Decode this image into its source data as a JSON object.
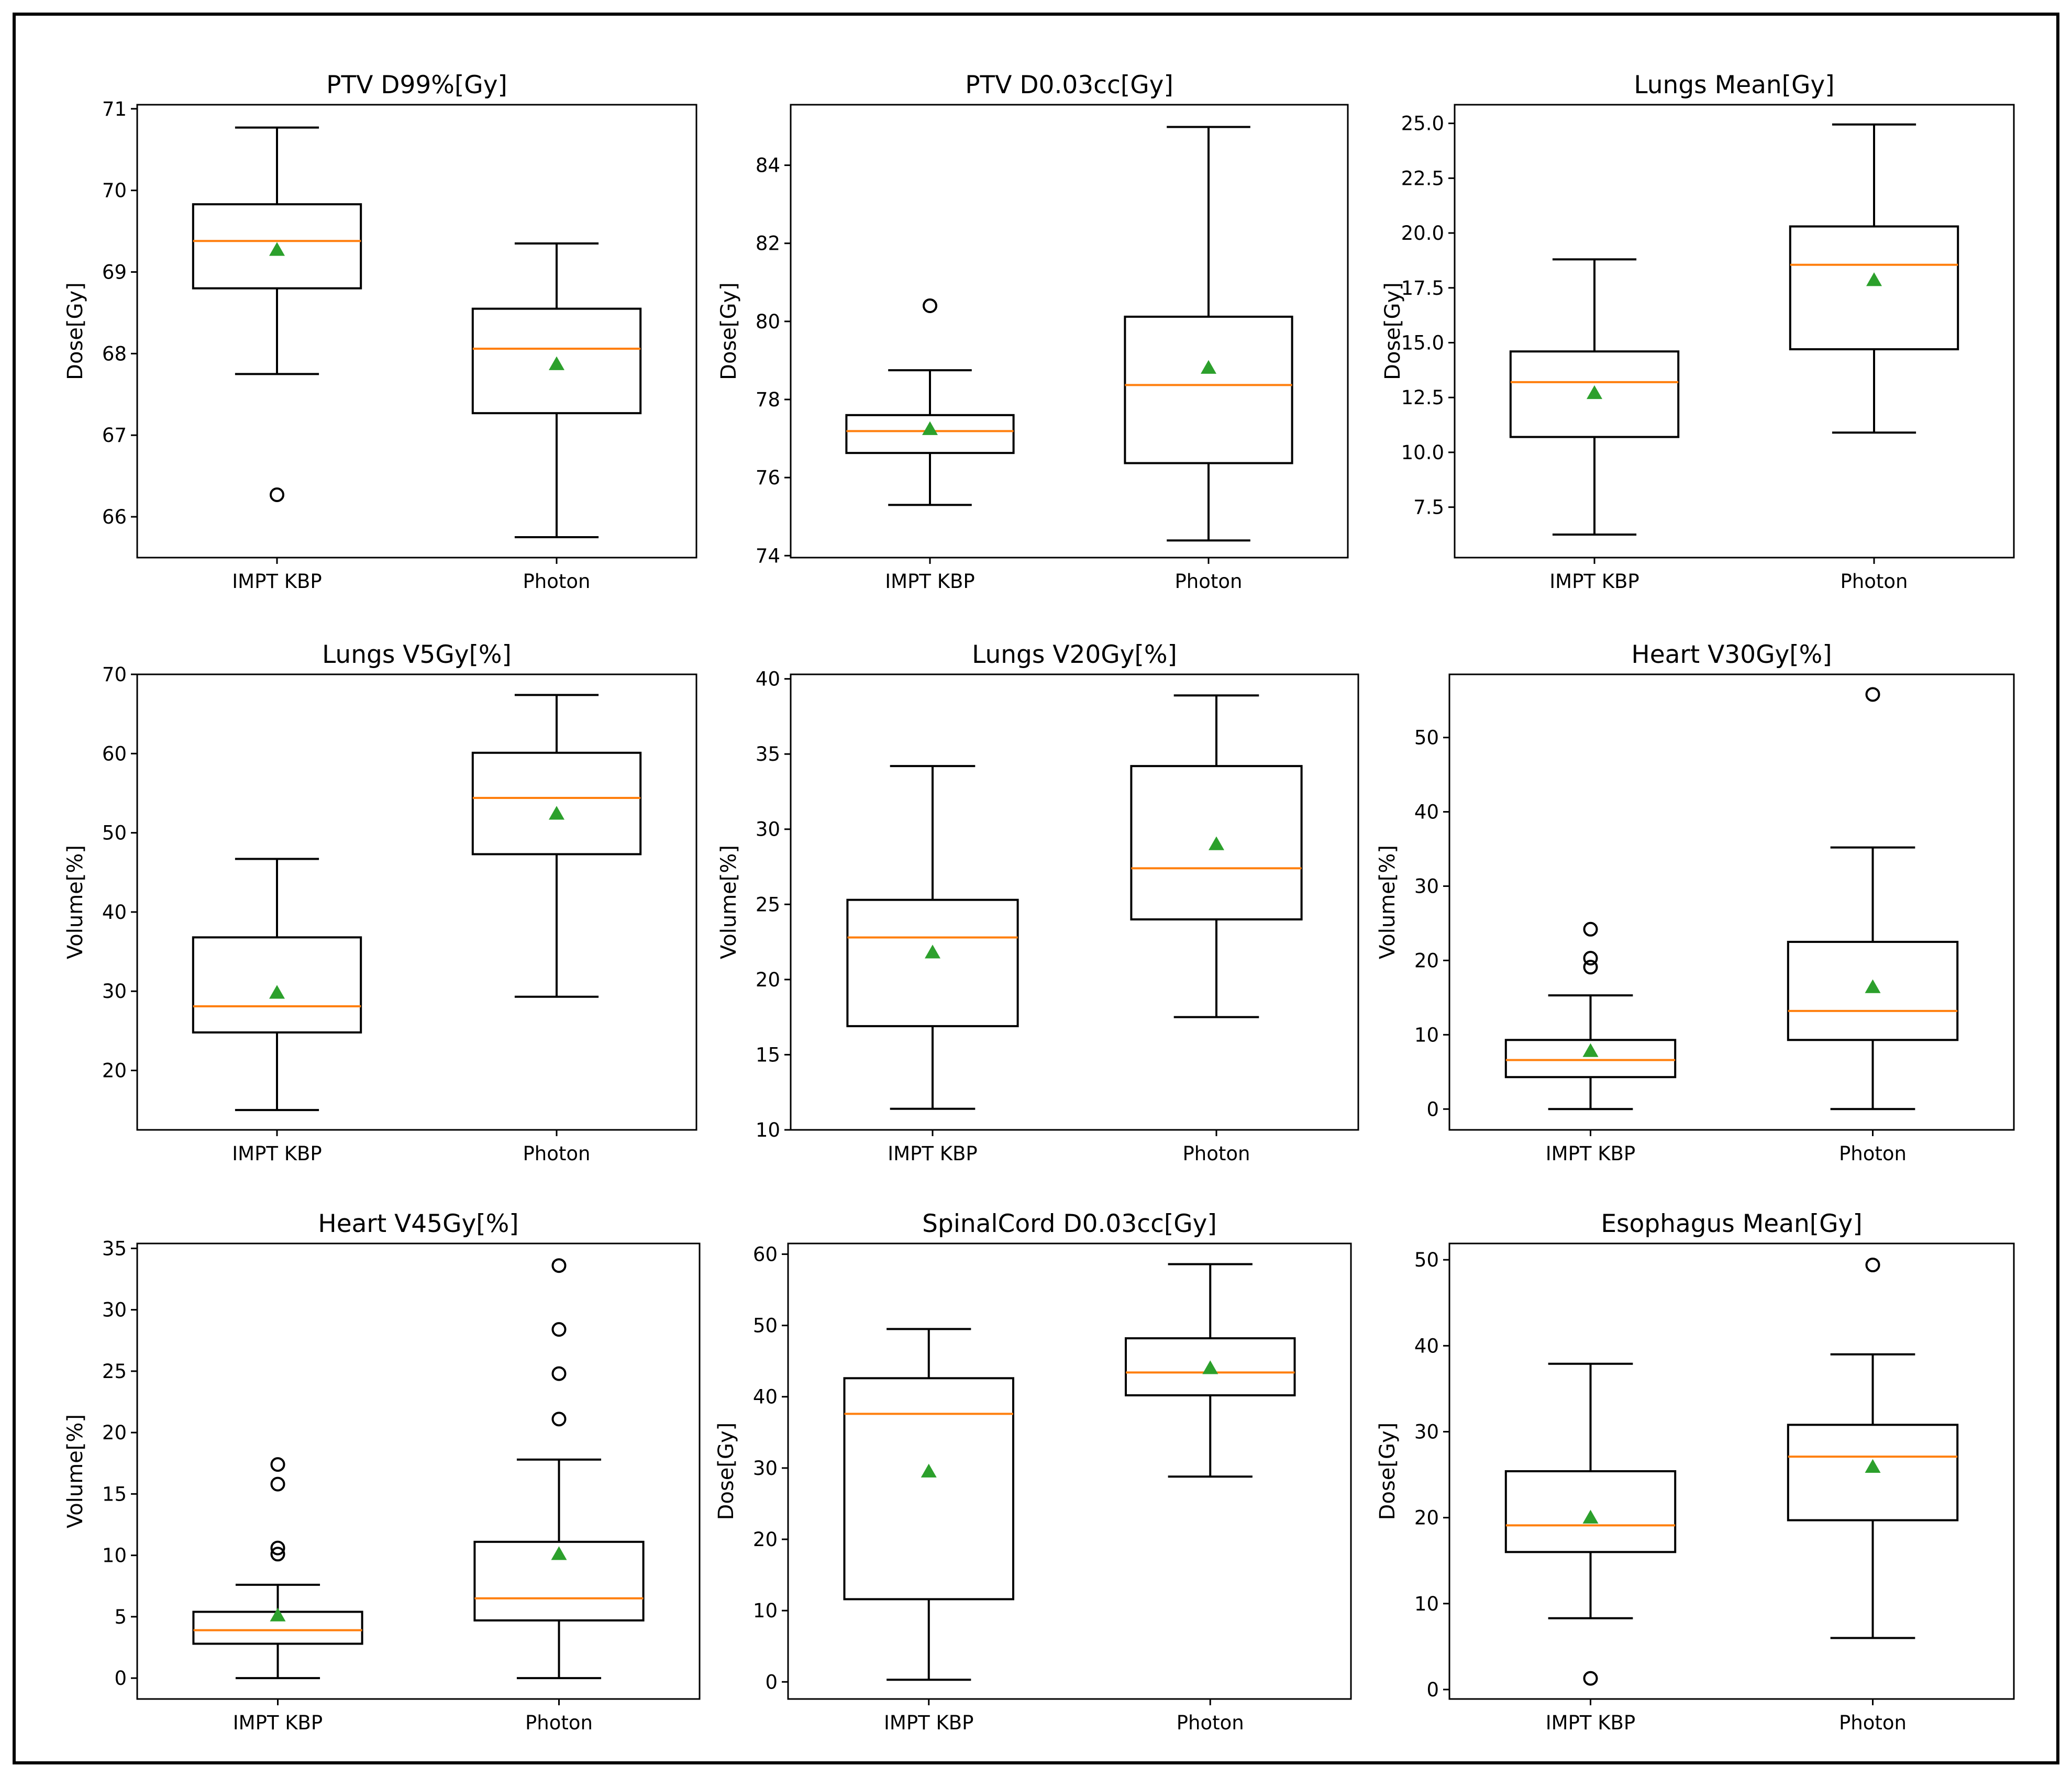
{
  "figure": {
    "colors": {
      "median": "#ff7f0e",
      "mean": "#2ca02c",
      "box": "#000000",
      "background": "#ffffff"
    }
  },
  "chart_data": [
    {
      "type": "boxplot",
      "title": "PTV D99%[Gy]",
      "ylabel": "Dose[Gy]",
      "categories": [
        "IMPT KBP",
        "Photon"
      ],
      "ylim": [
        65.5,
        71.05
      ],
      "yticks": [
        66,
        67,
        68,
        69,
        70,
        71
      ],
      "ytick_labels": [
        "66",
        "67",
        "68",
        "69",
        "70",
        "71"
      ],
      "series": [
        {
          "name": "IMPT KBP",
          "whislo": 67.75,
          "q1": 68.8,
          "med": 69.38,
          "q3": 69.83,
          "whishi": 70.77,
          "mean": 69.27,
          "fliers": [
            66.27
          ]
        },
        {
          "name": "Photon",
          "whislo": 65.75,
          "q1": 67.27,
          "med": 68.06,
          "q3": 68.55,
          "whishi": 69.35,
          "mean": 67.87,
          "fliers": []
        }
      ]
    },
    {
      "type": "boxplot",
      "title": "PTV D0.03cc[Gy]",
      "ylabel": "Dose[Gy]",
      "categories": [
        "IMPT KBP",
        "Photon"
      ],
      "ylim": [
        73.95,
        85.55
      ],
      "yticks": [
        74,
        76,
        78,
        80,
        82,
        84
      ],
      "ytick_labels": [
        "74",
        "76",
        "78",
        "80",
        "82",
        "84"
      ],
      "series": [
        {
          "name": "IMPT KBP",
          "whislo": 75.3,
          "q1": 76.63,
          "med": 77.19,
          "q3": 77.6,
          "whishi": 78.75,
          "mean": 77.24,
          "fliers": [
            80.4
          ]
        },
        {
          "name": "Photon",
          "whislo": 74.39,
          "q1": 76.37,
          "med": 78.37,
          "q3": 80.12,
          "whishi": 84.98,
          "mean": 78.81,
          "fliers": []
        }
      ]
    },
    {
      "type": "boxplot",
      "title": "Lungs Mean[Gy]",
      "ylabel": "Dose[Gy]",
      "categories": [
        "IMPT KBP",
        "Photon"
      ],
      "ylim": [
        5.2,
        25.85
      ],
      "yticks": [
        7.5,
        10.0,
        12.5,
        15.0,
        17.5,
        20.0,
        22.5,
        25.0
      ],
      "ytick_labels": [
        "7.5",
        "10.0",
        "12.5",
        "15.0",
        "17.5",
        "20.0",
        "22.5",
        "25.0"
      ],
      "series": [
        {
          "name": "IMPT KBP",
          "whislo": 6.25,
          "q1": 10.7,
          "med": 13.2,
          "q3": 14.6,
          "whishi": 18.8,
          "mean": 12.7,
          "fliers": []
        },
        {
          "name": "Photon",
          "whislo": 10.9,
          "q1": 14.7,
          "med": 18.55,
          "q3": 20.3,
          "whishi": 24.95,
          "mean": 17.85,
          "fliers": []
        }
      ]
    },
    {
      "type": "boxplot",
      "title": "Lungs V5Gy[%]",
      "ylabel": "Volume[%]",
      "categories": [
        "IMPT KBP",
        "Photon"
      ],
      "ylim": [
        12.5,
        70.0
      ],
      "yticks": [
        20,
        30,
        40,
        50,
        60,
        70
      ],
      "ytick_labels": [
        "20",
        "30",
        "40",
        "50",
        "60",
        "70"
      ],
      "series": [
        {
          "name": "IMPT KBP",
          "whislo": 15.0,
          "q1": 24.8,
          "med": 28.1,
          "q3": 36.8,
          "whishi": 46.7,
          "mean": 29.8,
          "fliers": []
        },
        {
          "name": "Photon",
          "whislo": 29.3,
          "q1": 47.3,
          "med": 54.4,
          "q3": 60.1,
          "whishi": 67.4,
          "mean": 52.4,
          "fliers": []
        }
      ]
    },
    {
      "type": "boxplot",
      "title": "Lungs V20Gy[%]",
      "ylabel": "Volume[%]",
      "categories": [
        "IMPT KBP",
        "Photon"
      ],
      "ylim": [
        10.0,
        40.3
      ],
      "yticks": [
        10,
        15,
        20,
        25,
        30,
        35,
        40
      ],
      "ytick_labels": [
        "10",
        "15",
        "20",
        "25",
        "30",
        "35",
        "40"
      ],
      "series": [
        {
          "name": "IMPT KBP",
          "whislo": 11.4,
          "q1": 16.9,
          "med": 22.8,
          "q3": 25.3,
          "whishi": 34.2,
          "mean": 21.8,
          "fliers": []
        },
        {
          "name": "Photon",
          "whislo": 17.5,
          "q1": 24.0,
          "med": 27.4,
          "q3": 34.2,
          "whishi": 38.9,
          "mean": 29.0,
          "fliers": []
        }
      ]
    },
    {
      "type": "boxplot",
      "title": "Heart V30Gy[%]",
      "ylabel": "Volume[%]",
      "categories": [
        "IMPT KBP",
        "Photon"
      ],
      "ylim": [
        -2.8,
        58.5
      ],
      "yticks": [
        0,
        10,
        20,
        30,
        40,
        50
      ],
      "ytick_labels": [
        "0",
        "10",
        "20",
        "30",
        "40",
        "50"
      ],
      "series": [
        {
          "name": "IMPT KBP",
          "whislo": 0.0,
          "q1": 4.3,
          "med": 6.6,
          "q3": 9.3,
          "whishi": 15.3,
          "mean": 7.8,
          "fliers": [
            24.2,
            20.3,
            19.1
          ]
        },
        {
          "name": "Photon",
          "whislo": 0.0,
          "q1": 9.3,
          "med": 13.2,
          "q3": 22.5,
          "whishi": 35.2,
          "mean": 16.4,
          "fliers": [
            55.8
          ]
        }
      ]
    },
    {
      "type": "boxplot",
      "title": "Heart V45Gy[%]",
      "ylabel": "Volume[%]",
      "categories": [
        "IMPT KBP",
        "Photon"
      ],
      "ylim": [
        -1.7,
        35.4
      ],
      "yticks": [
        0,
        5,
        10,
        15,
        20,
        25,
        30,
        35
      ],
      "ytick_labels": [
        "0",
        "5",
        "10",
        "15",
        "20",
        "25",
        "30",
        "35"
      ],
      "series": [
        {
          "name": "IMPT KBP",
          "whislo": 0.0,
          "q1": 2.8,
          "med": 3.9,
          "q3": 5.4,
          "whishi": 7.6,
          "mean": 5.1,
          "fliers": [
            17.4,
            15.8,
            10.6,
            10.1
          ]
        },
        {
          "name": "Photon",
          "whislo": 0.0,
          "q1": 4.7,
          "med": 6.5,
          "q3": 11.1,
          "whishi": 17.8,
          "mean": 10.1,
          "fliers": [
            33.6,
            28.4,
            24.8,
            21.1
          ]
        }
      ]
    },
    {
      "type": "boxplot",
      "title": "SpinalCord D0.03cc[Gy]",
      "ylabel": "Dose[Gy]",
      "categories": [
        "IMPT KBP",
        "Photon"
      ],
      "ylim": [
        -2.4,
        61.5
      ],
      "yticks": [
        0,
        10,
        20,
        30,
        40,
        50,
        60
      ],
      "ytick_labels": [
        "0",
        "10",
        "20",
        "30",
        "40",
        "50",
        "60"
      ],
      "series": [
        {
          "name": "IMPT KBP",
          "whislo": 0.3,
          "q1": 11.6,
          "med": 37.6,
          "q3": 42.6,
          "whishi": 49.5,
          "mean": 29.5,
          "fliers": []
        },
        {
          "name": "Photon",
          "whislo": 28.8,
          "q1": 40.2,
          "med": 43.4,
          "q3": 48.2,
          "whishi": 58.6,
          "mean": 44.0,
          "fliers": []
        }
      ]
    },
    {
      "type": "boxplot",
      "title": "Esophagus Mean[Gy]",
      "ylabel": "Dose[Gy]",
      "categories": [
        "IMPT KBP",
        "Photon"
      ],
      "ylim": [
        -1.1,
        51.9
      ],
      "yticks": [
        0,
        10,
        20,
        30,
        40,
        50
      ],
      "ytick_labels": [
        "0",
        "10",
        "20",
        "30",
        "40",
        "50"
      ],
      "series": [
        {
          "name": "IMPT KBP",
          "whislo": 8.3,
          "q1": 16.0,
          "med": 19.1,
          "q3": 25.4,
          "whishi": 37.9,
          "mean": 20.0,
          "fliers": [
            1.3
          ]
        },
        {
          "name": "Photon",
          "whislo": 6.0,
          "q1": 19.7,
          "med": 27.1,
          "q3": 30.8,
          "whishi": 39.0,
          "mean": 25.9,
          "fliers": [
            49.4
          ]
        }
      ]
    }
  ]
}
